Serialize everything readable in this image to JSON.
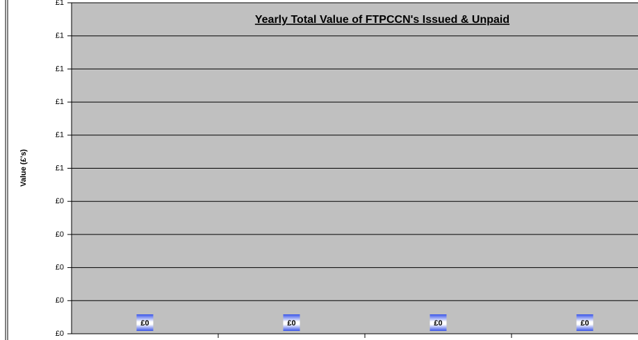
{
  "chart_data": {
    "type": "bar",
    "title": "Yearly Total Value of FTPCCN's Issued & Unpaid",
    "y_label": "Value (£'s)",
    "categories": [
      null,
      null,
      null,
      null
    ],
    "values": [
      0,
      0,
      0,
      0
    ],
    "value_labels": [
      "£0",
      "£0",
      "£0",
      "£0"
    ],
    "color": "#3a55e8",
    "ylim": [
      0,
      1
    ],
    "yticks": [
      {
        "value": 0,
        "label": "£0"
      },
      {
        "value": 0.1,
        "label": "£0"
      },
      {
        "value": 0.2,
        "label": "£0"
      },
      {
        "value": 0.3,
        "label": "£0"
      },
      {
        "value": 0.4,
        "label": "£0"
      },
      {
        "value": 0.5,
        "label": "£1"
      },
      {
        "value": 0.6,
        "label": "£1"
      },
      {
        "value": 0.7,
        "label": "£1"
      },
      {
        "value": 0.8,
        "label": "£1"
      },
      {
        "value": 0.9,
        "label": "£1"
      },
      {
        "value": 1,
        "label": "£1"
      }
    ],
    "grid": true
  }
}
